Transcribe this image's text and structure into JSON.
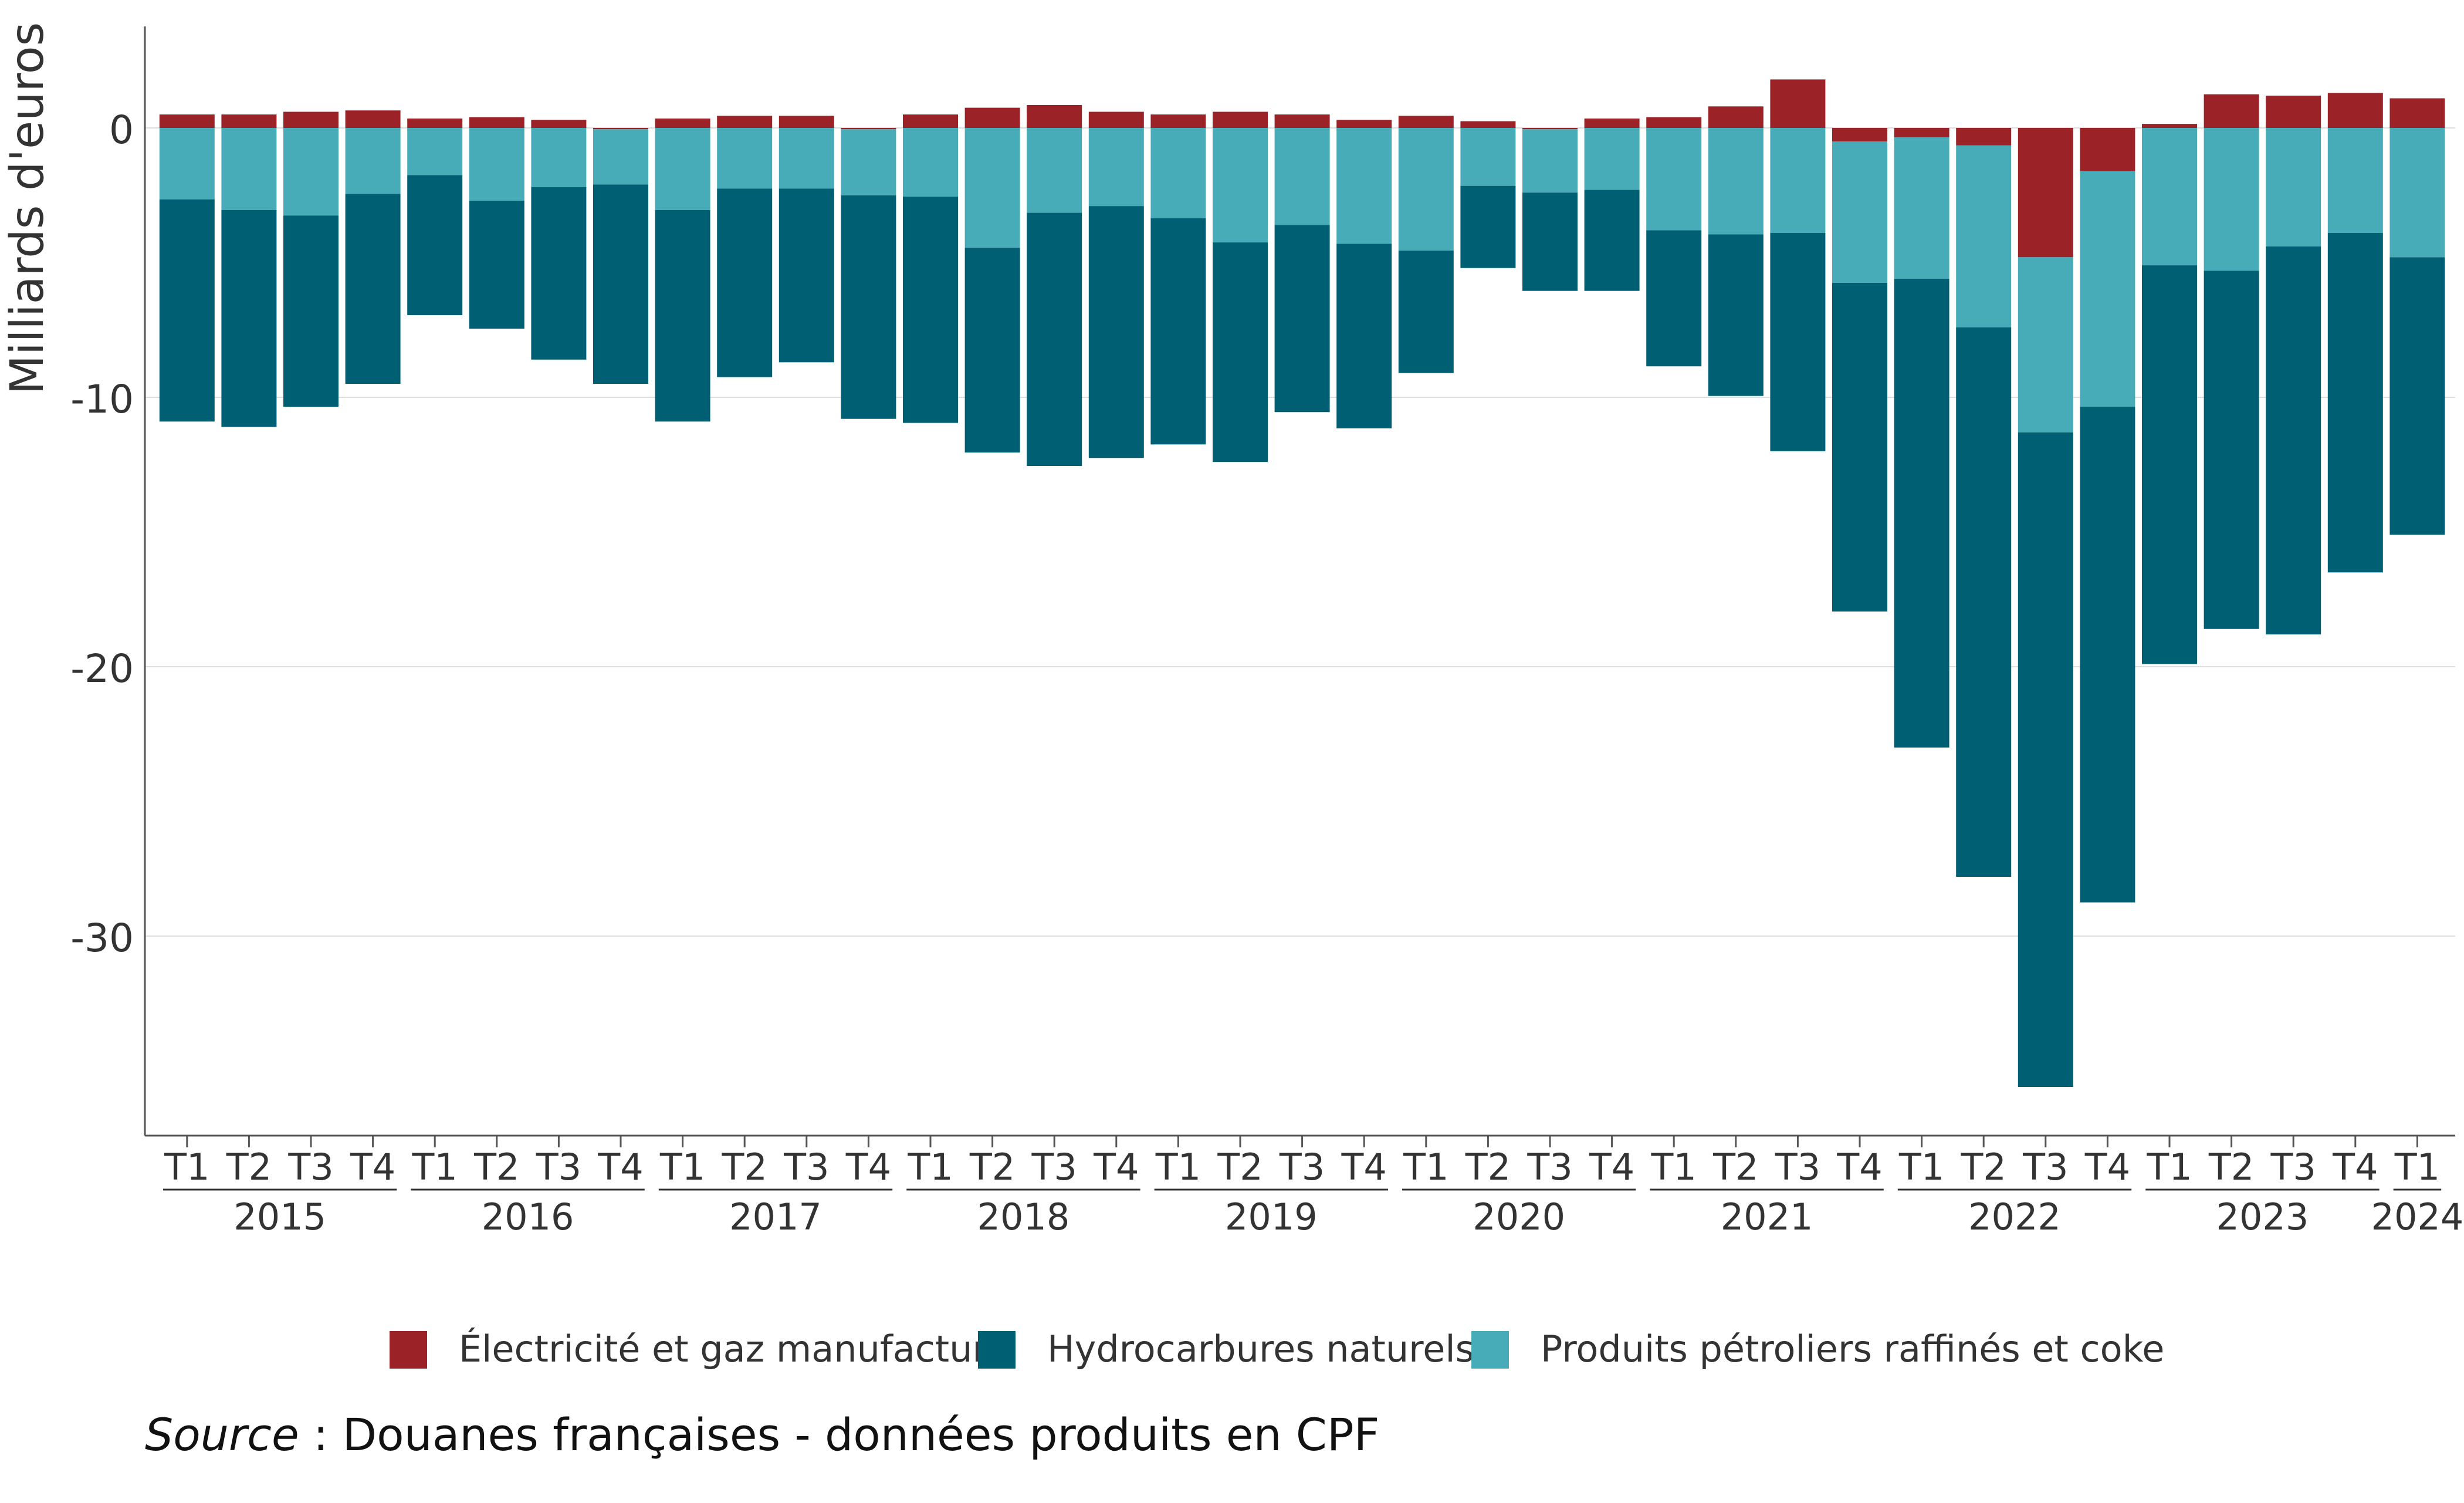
{
  "chart_data": {
    "type": "bar",
    "stacked": true,
    "ylabel": "Milliards d'euros",
    "xlabel": "",
    "ylim": [
      -37,
      3.7
    ],
    "yticks": [
      0,
      -10,
      -20,
      -30
    ],
    "grid": "horizontal",
    "legend_position": "bottom-center",
    "quarter_labels": [
      "T1",
      "T2",
      "T3",
      "T4",
      "T1",
      "T2",
      "T3",
      "T4",
      "T1",
      "T2",
      "T3",
      "T4",
      "T1",
      "T2",
      "T3",
      "T4",
      "T1",
      "T2",
      "T3",
      "T4",
      "T1",
      "T2",
      "T3",
      "T4",
      "T1",
      "T2",
      "T3",
      "T4",
      "T1",
      "T2",
      "T3",
      "T4",
      "T1",
      "T2",
      "T3",
      "T4",
      "T1"
    ],
    "year_groups": [
      {
        "label": "2015",
        "count": 4
      },
      {
        "label": "2016",
        "count": 4
      },
      {
        "label": "2017",
        "count": 4
      },
      {
        "label": "2018",
        "count": 4
      },
      {
        "label": "2019",
        "count": 4
      },
      {
        "label": "2020",
        "count": 4
      },
      {
        "label": "2021",
        "count": 4
      },
      {
        "label": "2022",
        "count": 4
      },
      {
        "label": "2023",
        "count": 4
      },
      {
        "label": "2024",
        "count": 1
      }
    ],
    "series": [
      {
        "name": "Électricité et gaz manufacturé",
        "color": "#9b2226",
        "values": [
          0.5,
          0.5,
          0.6,
          0.65,
          0.35,
          0.4,
          0.3,
          -0.05,
          0.35,
          0.45,
          0.45,
          -0.05,
          0.5,
          0.75,
          0.85,
          0.6,
          0.5,
          0.6,
          0.5,
          0.3,
          0.45,
          0.25,
          -0.05,
          0.35,
          0.4,
          0.8,
          1.8,
          -0.5,
          -0.35,
          -0.65,
          -4.8,
          -1.6,
          0.15,
          1.25,
          1.2,
          1.3,
          1.1
        ]
      },
      {
        "name": "Produits pétroliers raffinés et coke",
        "color": "#48acb8",
        "values": [
          -2.65,
          -3.05,
          -3.25,
          -2.45,
          -1.75,
          -2.7,
          -2.2,
          -2.05,
          -3.05,
          -2.25,
          -2.25,
          -2.45,
          -2.55,
          -4.45,
          -3.15,
          -2.9,
          -3.35,
          -4.25,
          -3.6,
          -4.3,
          -4.55,
          -2.15,
          -2.35,
          -2.3,
          -3.8,
          -3.95,
          -3.9,
          -5.25,
          -5.25,
          -6.75,
          -6.5,
          -8.75,
          -5.1,
          -5.3,
          -4.4,
          -3.9,
          -4.8
        ]
      },
      {
        "name": "Hydrocarbures naturels",
        "color": "#005f73",
        "values": [
          -8.25,
          -8.05,
          -7.1,
          -7.05,
          -5.2,
          -4.75,
          -6.4,
          -7.4,
          -7.85,
          -7.0,
          -6.45,
          -8.3,
          -8.4,
          -7.6,
          -9.4,
          -9.35,
          -8.4,
          -8.15,
          -6.95,
          -6.85,
          -4.55,
          -3.05,
          -3.65,
          -3.75,
          -5.05,
          -6.0,
          -8.1,
          -12.2,
          -17.4,
          -20.4,
          -24.3,
          -18.4,
          -14.8,
          -13.3,
          -14.4,
          -12.6,
          -10.3
        ]
      }
    ],
    "legend": [
      "Électricité et gaz manufacturé",
      "Hydrocarbures naturels",
      "Produits pétroliers raffinés et coke"
    ]
  },
  "source": {
    "label": "Source",
    "text": " : Douanes françaises - données produits en CPF"
  }
}
